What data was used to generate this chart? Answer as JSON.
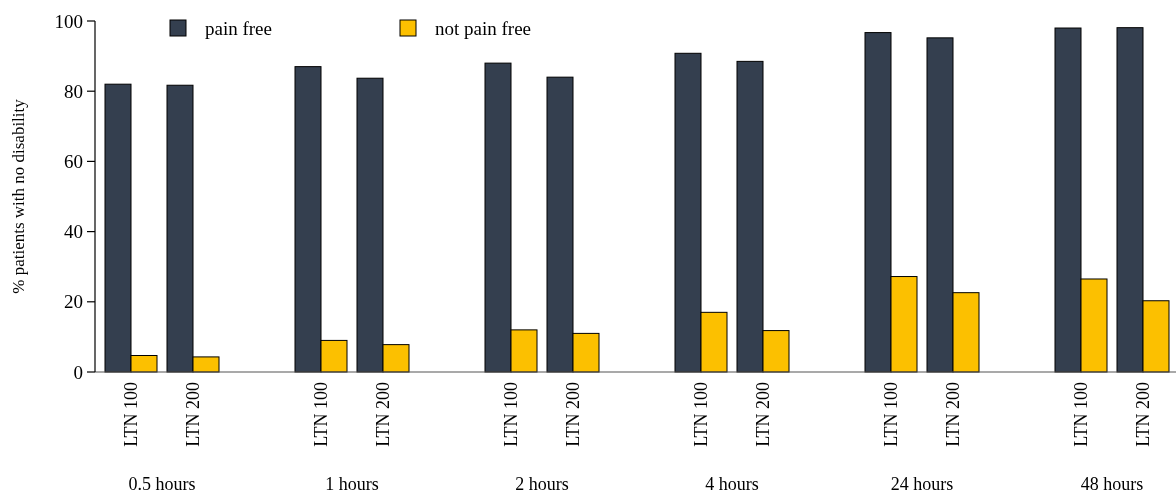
{
  "chart_data": {
    "type": "bar",
    "ylabel": "% patients with no disability",
    "categories": [
      "LTN 100",
      "LTN 200",
      "LTN 100",
      "LTN 200",
      "LTN 100",
      "LTN 200",
      "LTN 100",
      "LTN 200",
      "LTN 100",
      "LTN 200",
      "LTN 100",
      "LTN 200"
    ],
    "series": [
      {
        "name": "pain free",
        "color": "#343f4f",
        "values": [
          82,
          81.7,
          87,
          83.7,
          88,
          84,
          90.8,
          88.5,
          96.7,
          95.2,
          98,
          98.1
        ]
      },
      {
        "name": "not pain free",
        "color": "#fcc000",
        "values": [
          4.7,
          4.3,
          9,
          7.8,
          12,
          11,
          17,
          11.8,
          27.2,
          22.6,
          26.5,
          20.3
        ]
      }
    ],
    "annotations": [
      "0.5 hours",
      "1 hours",
      "2 hours",
      "4 hours",
      "24 hours",
      "48 hours"
    ],
    "ylim": [
      0,
      100
    ],
    "yticks": [
      0,
      20,
      40,
      60,
      80,
      100
    ],
    "legend": "top"
  }
}
